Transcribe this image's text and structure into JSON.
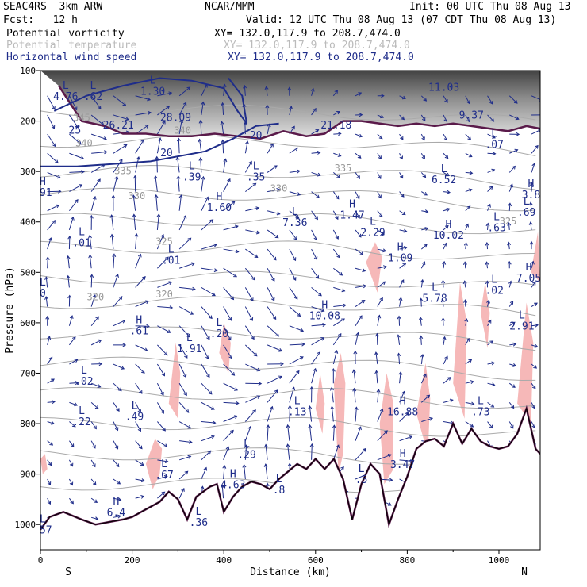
{
  "header": {
    "model": "SEAC4RS  3km ARW",
    "center": "NCAR/MMM",
    "init": "Init: 00 UTC Thu 08 Aug 13",
    "fcst": "Fcst:   12 h",
    "valid": "Valid: 12 UTC Thu 08 Aug 13 (07 CDT Thu 08 Aug 13)"
  },
  "legend": [
    {
      "label": "Potential vorticity",
      "xy": "XY= 132.0,117.9 to 208.7,474.0",
      "color": "#000000"
    },
    {
      "label": "Potential temperature",
      "xy": "XY= 132.0,117.9 to 208.7,474.0",
      "color": "#bbbbbb"
    },
    {
      "label": "Horizontal wind speed",
      "xy": "XY= 132.0,117.9 to 208.7,474.0",
      "color": "#1f2d8a"
    }
  ],
  "chart_data": {
    "type": "cross-section",
    "xlabel": "Distance (km)",
    "ylabel": "Pressure (hPa)",
    "x_ticks": [
      0,
      200,
      400,
      600,
      800,
      1000
    ],
    "y_ticks": [
      100,
      200,
      300,
      400,
      500,
      600,
      700,
      800,
      900,
      1000
    ],
    "xlim": [
      0,
      1090
    ],
    "ylim": [
      1050,
      100
    ],
    "left_end": "S",
    "right_end": "N",
    "colors": {
      "pv": "#5a1a4a",
      "theta": "#aaaaaa",
      "wind": "#1f2d8a",
      "pv_fill": "#f6b8b8",
      "terrain": "#000000"
    },
    "theta_labels": [
      {
        "text": "340",
        "x": 310,
        "p": 225
      },
      {
        "text": "340",
        "x": 95,
        "p": 250
      },
      {
        "text": "345",
        "x": 90,
        "p": 200
      },
      {
        "text": "335",
        "x": 180,
        "p": 305
      },
      {
        "text": "330",
        "x": 210,
        "p": 355
      },
      {
        "text": "330",
        "x": 520,
        "p": 340
      },
      {
        "text": "325",
        "x": 270,
        "p": 445
      },
      {
        "text": "320",
        "x": 120,
        "p": 555
      },
      {
        "text": "320",
        "x": 270,
        "p": 550
      },
      {
        "text": "325",
        "x": 1020,
        "p": 405
      },
      {
        "text": "335",
        "x": 660,
        "p": 300
      }
    ],
    "speed_labels": [
      {
        "text": "28.09",
        "x": 295,
        "p": 200
      },
      {
        "text": "26.21",
        "x": 170,
        "p": 215
      },
      {
        "text": "25",
        "x": 75,
        "p": 225
      },
      {
        "text": "20",
        "x": 275,
        "p": 270
      },
      {
        "text": "20",
        "x": 470,
        "p": 235
      },
      {
        "text": "21.18",
        "x": 645,
        "p": 215
      },
      {
        "text": "9.37",
        "x": 940,
        "p": 195
      },
      {
        "text": "11.03",
        "x": 880,
        "p": 140
      }
    ],
    "hl_labels": [
      {
        "type": "L",
        "value": "4.76",
        "x": 55,
        "p": 155
      },
      {
        "type": "L",
        "value": ".62",
        "x": 115,
        "p": 155
      },
      {
        "type": "L",
        "value": "1.30",
        "x": 245,
        "p": 145
      },
      {
        "type": "L",
        "value": ".39",
        "x": 330,
        "p": 315
      },
      {
        "type": "L",
        "value": ".35",
        "x": 470,
        "p": 315
      },
      {
        "type": "H",
        "value": "1.60",
        "x": 390,
        "p": 375
      },
      {
        "type": "L",
        "value": "7.36",
        "x": 555,
        "p": 405
      },
      {
        "type": "H",
        "value": "1.47",
        "x": 680,
        "p": 390
      },
      {
        "type": "L",
        "value": "2.29",
        "x": 725,
        "p": 425
      },
      {
        "type": "L",
        "value": "6.52",
        "x": 880,
        "p": 320
      },
      {
        "type": "H",
        "value": "10.02",
        "x": 890,
        "p": 430
      },
      {
        "type": "L",
        "value": ".63",
        "x": 995,
        "p": 415
      },
      {
        "type": "L",
        "value": ".07",
        "x": 990,
        "p": 250
      },
      {
        "type": "H",
        "value": "3.8",
        "x": 1070,
        "p": 350
      },
      {
        "type": "L",
        "value": ".69",
        "x": 1060,
        "p": 385
      },
      {
        "type": "L",
        "value": ".01",
        "x": 90,
        "p": 445
      },
      {
        "type": "L",
        "value": ".01",
        "x": 285,
        "p": 480
      },
      {
        "type": "H",
        "value": "1.09",
        "x": 785,
        "p": 475
      },
      {
        "type": "L",
        "value": "5.78",
        "x": 860,
        "p": 555
      },
      {
        "type": "L",
        "value": ".02",
        "x": 990,
        "p": 540
      },
      {
        "type": "H",
        "value": "7.05",
        "x": 1065,
        "p": 515
      },
      {
        "type": "H",
        "value": "10.08",
        "x": 620,
        "p": 590
      },
      {
        "type": "H",
        "value": ".61",
        "x": 215,
        "p": 620
      },
      {
        "type": "L",
        "value": "1.91",
        "x": 325,
        "p": 655
      },
      {
        "type": "L",
        "value": ".20",
        "x": 390,
        "p": 625
      },
      {
        "type": "L",
        "value": "2.91",
        "x": 1050,
        "p": 610
      },
      {
        "type": "L",
        "value": ".02",
        "x": 95,
        "p": 720
      },
      {
        "type": "L",
        "value": ".22",
        "x": 90,
        "p": 800
      },
      {
        "type": "L",
        "value": ".49",
        "x": 205,
        "p": 790
      },
      {
        "type": "L",
        "value": ".13",
        "x": 560,
        "p": 780
      },
      {
        "type": "H",
        "value": "16.88",
        "x": 790,
        "p": 780
      },
      {
        "type": "L",
        "value": ".73",
        "x": 960,
        "p": 780
      },
      {
        "type": "L",
        "value": ".29",
        "x": 450,
        "p": 865
      },
      {
        "type": "H",
        "value": "3.47",
        "x": 790,
        "p": 885
      },
      {
        "type": "L",
        "value": ".67",
        "x": 270,
        "p": 905
      },
      {
        "type": "H",
        "value": "4.63",
        "x": 420,
        "p": 925
      },
      {
        "type": "L",
        "value": ".8",
        "x": 520,
        "p": 935
      },
      {
        "type": "L",
        "value": ".5",
        "x": 700,
        "p": 915
      },
      {
        "type": "H",
        "value": "6.4",
        "x": 165,
        "p": 980
      },
      {
        "type": "L",
        "value": ".36",
        "x": 345,
        "p": 1000
      },
      {
        "type": "L",
        "value": ".57",
        "x": 5,
        "p": 1015
      },
      {
        "type": "H",
        "value": ".91",
        "x": 5,
        "p": 345
      },
      {
        "type": "L",
        "value": "0",
        "x": 5,
        "p": 545
      }
    ],
    "terrain": [
      [
        0,
        1010
      ],
      [
        20,
        985
      ],
      [
        50,
        975
      ],
      [
        90,
        990
      ],
      [
        120,
        1000
      ],
      [
        150,
        995
      ],
      [
        180,
        990
      ],
      [
        200,
        985
      ],
      [
        230,
        970
      ],
      [
        260,
        955
      ],
      [
        280,
        935
      ],
      [
        300,
        950
      ],
      [
        320,
        990
      ],
      [
        340,
        945
      ],
      [
        370,
        925
      ],
      [
        385,
        920
      ],
      [
        400,
        975
      ],
      [
        420,
        945
      ],
      [
        440,
        925
      ],
      [
        460,
        915
      ],
      [
        480,
        920
      ],
      [
        500,
        930
      ],
      [
        520,
        910
      ],
      [
        540,
        895
      ],
      [
        560,
        880
      ],
      [
        580,
        890
      ],
      [
        600,
        870
      ],
      [
        620,
        890
      ],
      [
        640,
        870
      ],
      [
        660,
        910
      ],
      [
        680,
        990
      ],
      [
        700,
        920
      ],
      [
        720,
        880
      ],
      [
        740,
        900
      ],
      [
        760,
        1000
      ],
      [
        780,
        950
      ],
      [
        800,
        905
      ],
      [
        820,
        850
      ],
      [
        840,
        835
      ],
      [
        860,
        830
      ],
      [
        880,
        845
      ],
      [
        900,
        800
      ],
      [
        920,
        840
      ],
      [
        940,
        810
      ],
      [
        960,
        835
      ],
      [
        980,
        845
      ],
      [
        1000,
        850
      ],
      [
        1020,
        845
      ],
      [
        1040,
        820
      ],
      [
        1060,
        770
      ],
      [
        1080,
        850
      ],
      [
        1090,
        860
      ]
    ],
    "tropopause": [
      [
        40,
        130
      ],
      [
        90,
        200
      ],
      [
        140,
        210
      ],
      [
        180,
        225
      ],
      [
        230,
        225
      ],
      [
        280,
        230
      ],
      [
        330,
        230
      ],
      [
        380,
        225
      ],
      [
        430,
        230
      ],
      [
        480,
        235
      ],
      [
        530,
        220
      ],
      [
        580,
        230
      ],
      [
        620,
        225
      ],
      [
        660,
        200
      ],
      [
        700,
        200
      ],
      [
        740,
        205
      ],
      [
        780,
        210
      ],
      [
        820,
        205
      ],
      [
        860,
        210
      ],
      [
        900,
        205
      ],
      [
        940,
        210
      ],
      [
        980,
        215
      ],
      [
        1020,
        220
      ],
      [
        1060,
        210
      ],
      [
        1090,
        215
      ]
    ],
    "jet_core": [
      [
        30,
        180
      ],
      [
        100,
        150
      ],
      [
        180,
        130
      ],
      [
        260,
        115
      ],
      [
        330,
        120
      ],
      [
        400,
        135
      ],
      [
        430,
        180
      ],
      [
        450,
        205
      ],
      [
        440,
        150
      ],
      [
        410,
        115
      ]
    ],
    "wind_20": [
      [
        0,
        290
      ],
      [
        80,
        290
      ],
      [
        160,
        285
      ],
      [
        240,
        280
      ],
      [
        300,
        270
      ],
      [
        360,
        260
      ],
      [
        420,
        235
      ],
      [
        470,
        210
      ],
      [
        520,
        205
      ]
    ],
    "pv_blobs": [
      [
        [
          230,
          880
        ],
        [
          250,
          830
        ],
        [
          265,
          850
        ],
        [
          260,
          900
        ],
        [
          245,
          930
        ]
      ],
      [
        [
          280,
          760
        ],
        [
          295,
          640
        ],
        [
          305,
          700
        ],
        [
          300,
          790
        ]
      ],
      [
        [
          390,
          660
        ],
        [
          400,
          600
        ],
        [
          415,
          640
        ],
        [
          410,
          700
        ]
      ],
      [
        [
          600,
          770
        ],
        [
          610,
          700
        ],
        [
          620,
          760
        ],
        [
          615,
          820
        ]
      ],
      [
        [
          640,
          720
        ],
        [
          655,
          660
        ],
        [
          665,
          720
        ],
        [
          660,
          860
        ],
        [
          650,
          900
        ]
      ],
      [
        [
          710,
          480
        ],
        [
          730,
          440
        ],
        [
          745,
          470
        ],
        [
          735,
          540
        ]
      ],
      [
        [
          740,
          800
        ],
        [
          755,
          700
        ],
        [
          770,
          760
        ],
        [
          770,
          890
        ],
        [
          750,
          920
        ]
      ],
      [
        [
          820,
          780
        ],
        [
          840,
          680
        ],
        [
          850,
          750
        ],
        [
          845,
          860
        ]
      ],
      [
        [
          900,
          720
        ],
        [
          915,
          520
        ],
        [
          930,
          600
        ],
        [
          925,
          790
        ]
      ],
      [
        [
          960,
          580
        ],
        [
          970,
          520
        ],
        [
          980,
          580
        ],
        [
          975,
          650
        ]
      ],
      [
        [
          1040,
          760
        ],
        [
          1060,
          560
        ],
        [
          1075,
          640
        ],
        [
          1070,
          800
        ]
      ],
      [
        [
          1070,
          500
        ],
        [
          1085,
          420
        ],
        [
          1090,
          520
        ]
      ],
      [
        [
          0,
          870
        ],
        [
          10,
          860
        ],
        [
          15,
          890
        ],
        [
          5,
          900
        ]
      ]
    ]
  }
}
